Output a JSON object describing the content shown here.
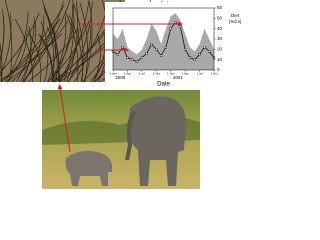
{
  "chart_data": {
    "type": "line",
    "x_label": "Date",
    "y_label_lines": [
      "Diet",
      "(%C4)"
    ],
    "year_labels": [
      {
        "value": 1.5,
        "label": "2000"
      },
      {
        "value": 13.5,
        "label": "2001"
      }
    ],
    "x": [
      0,
      1,
      2,
      3,
      4,
      5,
      6,
      7,
      8,
      9,
      10,
      11,
      12,
      13,
      14,
      15,
      16,
      17,
      18,
      19,
      20,
      21
    ],
    "xlim": [
      0,
      21
    ],
    "xticks": [
      {
        "value": 0,
        "label": "1 Jan"
      },
      {
        "value": 3,
        "label": "1 Apr"
      },
      {
        "value": 6,
        "label": "1 Jul"
      },
      {
        "value": 9,
        "label": "1 Oct"
      },
      {
        "value": 12,
        "label": "1 Jan"
      },
      {
        "value": 15,
        "label": "1 Apr"
      },
      {
        "value": 18,
        "label": "1 Jul"
      },
      {
        "value": 21,
        "label": "1 Oct"
      }
    ],
    "ylim": [
      0,
      60
    ],
    "yticks": [
      0,
      10,
      20,
      30,
      40,
      50,
      60
    ],
    "series": [
      {
        "color": "#a9a9a9",
        "fill": true,
        "values": [
          35,
          30,
          40,
          22,
          18,
          15,
          20,
          30,
          45,
          38,
          25,
          40,
          52,
          55,
          48,
          35,
          22,
          18,
          25,
          40,
          30,
          20
        ]
      },
      {
        "color": "#000000",
        "fill": false,
        "values": [
          18,
          15,
          22,
          12,
          10,
          8,
          12,
          16,
          25,
          20,
          14,
          22,
          40,
          46,
          42,
          20,
          12,
          10,
          15,
          22,
          18,
          12
        ]
      }
    ]
  }
}
